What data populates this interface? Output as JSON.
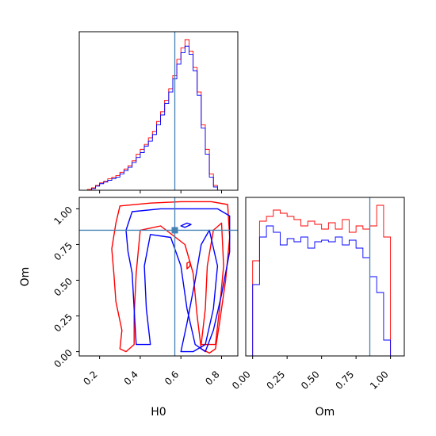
{
  "figure": {
    "type": "corner-plot",
    "parameters": [
      "H0",
      "Om"
    ]
  },
  "colors": {
    "series_a": "#ff0000",
    "series_b": "#0000ff",
    "truth": "#4682b4"
  },
  "chart_data": [
    {
      "id": "h0-marginal",
      "type": "histogram",
      "xlim": [
        0.1,
        0.88
      ],
      "truth": 0.57,
      "x_ticks": [
        0.2,
        0.4,
        0.6,
        0.8
      ],
      "bin_edges": [
        0.1,
        0.12,
        0.14,
        0.16,
        0.18,
        0.2,
        0.22,
        0.24,
        0.26,
        0.28,
        0.3,
        0.32,
        0.34,
        0.36,
        0.38,
        0.4,
        0.42,
        0.44,
        0.46,
        0.48,
        0.5,
        0.52,
        0.54,
        0.56,
        0.58,
        0.6,
        0.62,
        0.64,
        0.66,
        0.68,
        0.7,
        0.72,
        0.74,
        0.76,
        0.78,
        0.8,
        0.82,
        0.84,
        0.86,
        0.88
      ],
      "series": [
        {
          "color_key": "series_a",
          "values": [
            0,
            0,
            0.5,
            1.5,
            3,
            4.5,
            5.5,
            7,
            8,
            9,
            11,
            13,
            15,
            18,
            22,
            25,
            28,
            32,
            36,
            42,
            48,
            55,
            62,
            70,
            80,
            87,
            92,
            85,
            75,
            60,
            40,
            25,
            10,
            3,
            0,
            0,
            0,
            0,
            0
          ]
        },
        {
          "color_key": "series_b",
          "values": [
            0,
            0,
            0,
            1,
            2.5,
            4,
            5,
            6,
            7,
            8,
            10,
            12,
            14,
            17,
            20,
            23,
            27,
            30,
            34,
            40,
            46,
            53,
            60,
            68,
            77,
            84,
            88,
            83,
            73,
            58,
            38,
            22,
            8,
            2,
            0,
            0,
            0,
            0,
            0
          ]
        }
      ]
    },
    {
      "id": "h0-om-joint",
      "type": "contour",
      "xlim": [
        0.1,
        0.88
      ],
      "ylim": [
        -0.03,
        1.08
      ],
      "truth": [
        0.57,
        0.85
      ],
      "x_ticks": [
        0.2,
        0.4,
        0.6,
        0.8
      ],
      "y_ticks": [
        0.0,
        0.25,
        0.5,
        0.75,
        1.0
      ],
      "x_tick_labels": [
        "0.2",
        "0.4",
        "0.6",
        "0.8"
      ],
      "y_tick_labels": [
        "0.00",
        "0.25",
        "0.50",
        "0.75",
        "1.00"
      ],
      "xlabel": "H0",
      "ylabel": "Om",
      "contours": [
        {
          "color_key": "series_a",
          "level": "outer",
          "points": [
            [
              0.3,
              0.02
            ],
            [
              0.31,
              0.15
            ],
            [
              0.28,
              0.35
            ],
            [
              0.27,
              0.55
            ],
            [
              0.26,
              0.72
            ],
            [
              0.28,
              0.9
            ],
            [
              0.3,
              1.02
            ],
            [
              0.45,
              1.04
            ],
            [
              0.6,
              1.05
            ],
            [
              0.75,
              1.05
            ],
            [
              0.83,
              1.03
            ],
            [
              0.84,
              0.8
            ],
            [
              0.82,
              0.5
            ],
            [
              0.79,
              0.2
            ],
            [
              0.77,
              0.02
            ],
            [
              0.74,
              -0.01
            ],
            [
              0.7,
              0.02
            ],
            [
              0.68,
              0.25
            ],
            [
              0.66,
              0.55
            ],
            [
              0.62,
              0.75
            ],
            [
              0.5,
              0.88
            ],
            [
              0.4,
              0.85
            ],
            [
              0.38,
              0.55
            ],
            [
              0.37,
              0.25
            ],
            [
              0.37,
              0.05
            ],
            [
              0.33,
              0.0
            ]
          ]
        },
        {
          "color_key": "series_a",
          "level": "inner",
          "points": [
            [
              0.7,
              0.05
            ],
            [
              0.72,
              0.3
            ],
            [
              0.73,
              0.6
            ],
            [
              0.76,
              0.85
            ],
            [
              0.8,
              0.9
            ],
            [
              0.81,
              0.6
            ],
            [
              0.79,
              0.3
            ],
            [
              0.77,
              0.05
            ]
          ]
        },
        {
          "color_key": "series_a",
          "level": "blob",
          "points": [
            [
              0.63,
              0.58
            ],
            [
              0.645,
              0.6
            ],
            [
              0.645,
              0.63
            ],
            [
              0.63,
              0.62
            ]
          ]
        },
        {
          "color_key": "series_b",
          "level": "outer",
          "points": [
            [
              0.38,
              0.05
            ],
            [
              0.37,
              0.3
            ],
            [
              0.36,
              0.55
            ],
            [
              0.34,
              0.7
            ],
            [
              0.33,
              0.85
            ],
            [
              0.36,
              0.98
            ],
            [
              0.5,
              1.0
            ],
            [
              0.65,
              1.0
            ],
            [
              0.78,
              1.0
            ],
            [
              0.84,
              0.95
            ],
            [
              0.84,
              0.7
            ],
            [
              0.8,
              0.4
            ],
            [
              0.76,
              0.15
            ],
            [
              0.72,
              0.0
            ],
            [
              0.67,
              0.05
            ],
            [
              0.63,
              0.3
            ],
            [
              0.6,
              0.6
            ],
            [
              0.55,
              0.8
            ],
            [
              0.45,
              0.82
            ],
            [
              0.42,
              0.6
            ],
            [
              0.43,
              0.3
            ],
            [
              0.45,
              0.05
            ]
          ]
        },
        {
          "color_key": "series_b",
          "level": "inner",
          "points": [
            [
              0.6,
              0.0
            ],
            [
              0.63,
              0.2
            ],
            [
              0.67,
              0.5
            ],
            [
              0.7,
              0.75
            ],
            [
              0.74,
              0.85
            ],
            [
              0.78,
              0.6
            ],
            [
              0.76,
              0.3
            ],
            [
              0.72,
              0.05
            ],
            [
              0.66,
              0.0
            ]
          ]
        },
        {
          "color_key": "series_b",
          "level": "blob",
          "points": [
            [
              0.6,
              0.88
            ],
            [
              0.63,
              0.9
            ],
            [
              0.65,
              0.89
            ],
            [
              0.62,
              0.87
            ]
          ]
        }
      ]
    },
    {
      "id": "om-marginal",
      "type": "histogram",
      "xlim": [
        -0.05,
        1.1
      ],
      "truth": 0.85,
      "x_ticks": [
        0.0,
        0.25,
        0.5,
        0.75,
        1.0
      ],
      "x_tick_labels": [
        "0.00",
        "0.25",
        "0.50",
        "0.75",
        "1.00"
      ],
      "xlabel": "Om",
      "bin_edges": [
        0.0,
        0.05,
        0.1,
        0.15,
        0.2,
        0.25,
        0.3,
        0.35,
        0.4,
        0.45,
        0.5,
        0.55,
        0.6,
        0.65,
        0.7,
        0.75,
        0.8,
        0.85,
        0.9,
        0.95,
        1.0
      ],
      "series": [
        {
          "color_key": "series_a",
          "values": [
            60,
            85,
            88,
            92,
            90,
            88,
            86,
            82,
            85,
            83,
            80,
            84,
            80,
            86,
            78,
            82,
            80,
            82,
            95,
            75
          ]
        },
        {
          "color_key": "series_b",
          "values": [
            45,
            75,
            82,
            78,
            70,
            74,
            72,
            75,
            68,
            72,
            73,
            72,
            75,
            70,
            73,
            68,
            62,
            50,
            40,
            10
          ]
        }
      ]
    }
  ]
}
